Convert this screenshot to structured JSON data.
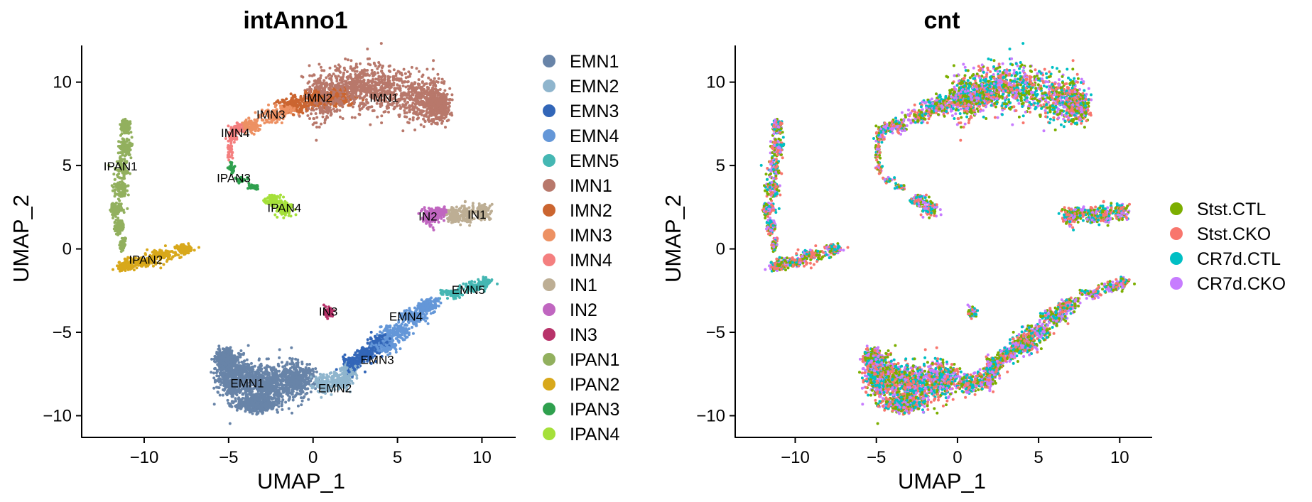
{
  "chart_data": [
    {
      "type": "scatter",
      "title": "intAnno1",
      "xlabel": "UMAP_1",
      "ylabel": "UMAP_2",
      "xlim": [
        -13.7,
        12
      ],
      "ylim": [
        -11.3,
        12.2
      ],
      "xticks": [
        -10,
        -5,
        0,
        5,
        10
      ],
      "yticks": [
        10,
        5,
        0,
        -5,
        -10
      ],
      "xtick_labels": [
        "−10",
        "−5",
        "0",
        "5",
        "10"
      ],
      "ytick_labels": [
        "10",
        "5",
        "0",
        "−5",
        "−10"
      ],
      "grid": false,
      "legend_position": "right",
      "legend": [
        {
          "name": "EMN1",
          "color": "#6884a8"
        },
        {
          "name": "EMN2",
          "color": "#8fb5cd"
        },
        {
          "name": "EMN3",
          "color": "#3266b8"
        },
        {
          "name": "EMN4",
          "color": "#6497d8"
        },
        {
          "name": "EMN5",
          "color": "#45b7b3"
        },
        {
          "name": "IMN1",
          "color": "#b8786b"
        },
        {
          "name": "IMN2",
          "color": "#cb6530"
        },
        {
          "name": "IMN3",
          "color": "#ed9163"
        },
        {
          "name": "IMN4",
          "color": "#f47f7f"
        },
        {
          "name": "IN1",
          "color": "#bdae94"
        },
        {
          "name": "IN2",
          "color": "#c066c0"
        },
        {
          "name": "IN3",
          "color": "#b8336a"
        },
        {
          "name": "IPAN1",
          "color": "#92b05e"
        },
        {
          "name": "IPAN2",
          "color": "#d8a81b"
        },
        {
          "name": "IPAN3",
          "color": "#2fa04e"
        },
        {
          "name": "IPAN4",
          "color": "#a5e03a"
        }
      ],
      "cluster_labels": [
        {
          "text": "IMN1",
          "x": 4.2,
          "y": 9.0
        },
        {
          "text": "IMN2",
          "x": 0.3,
          "y": 9.0
        },
        {
          "text": "IMN3",
          "x": -2.5,
          "y": 8.0
        },
        {
          "text": "IMN4",
          "x": -4.6,
          "y": 6.9
        },
        {
          "text": "IPAN1",
          "x": -11.4,
          "y": 4.9
        },
        {
          "text": "IPAN3",
          "x": -4.7,
          "y": 4.2
        },
        {
          "text": "IPAN4",
          "x": -1.7,
          "y": 2.4
        },
        {
          "text": "IN2",
          "x": 6.8,
          "y": 1.9
        },
        {
          "text": "IN1",
          "x": 9.7,
          "y": 2.0
        },
        {
          "text": "IPAN2",
          "x": -9.9,
          "y": -0.7
        },
        {
          "text": "EMN5",
          "x": 9.2,
          "y": -2.5
        },
        {
          "text": "IN3",
          "x": 0.9,
          "y": -3.8
        },
        {
          "text": "EMN4",
          "x": 5.5,
          "y": -4.1
        },
        {
          "text": "EMN3",
          "x": 3.8,
          "y": -6.7
        },
        {
          "text": "EMN1",
          "x": -3.9,
          "y": -8.1
        },
        {
          "text": "EMN2",
          "x": 1.3,
          "y": -8.4
        }
      ]
    },
    {
      "type": "scatter",
      "title": "cnt",
      "xlabel": "UMAP_1",
      "ylabel": "UMAP_2",
      "xlim": [
        -13.7,
        12
      ],
      "ylim": [
        -11.3,
        12.2
      ],
      "xticks": [
        -10,
        -5,
        0,
        5,
        10
      ],
      "yticks": [
        10,
        5,
        0,
        -5,
        -10
      ],
      "xtick_labels": [
        "−10",
        "−5",
        "0",
        "5",
        "10"
      ],
      "ytick_labels": [
        "10",
        "5",
        "0",
        "−5",
        "−10"
      ],
      "grid": false,
      "legend_position": "right",
      "legend": [
        {
          "name": "Stst.CTL",
          "color": "#7cae00"
        },
        {
          "name": "Stst.CKO",
          "color": "#f8766d"
        },
        {
          "name": "CR7d.CTL",
          "color": "#00bfc4"
        },
        {
          "name": "CR7d.CKO",
          "color": "#c77cff"
        }
      ]
    }
  ]
}
